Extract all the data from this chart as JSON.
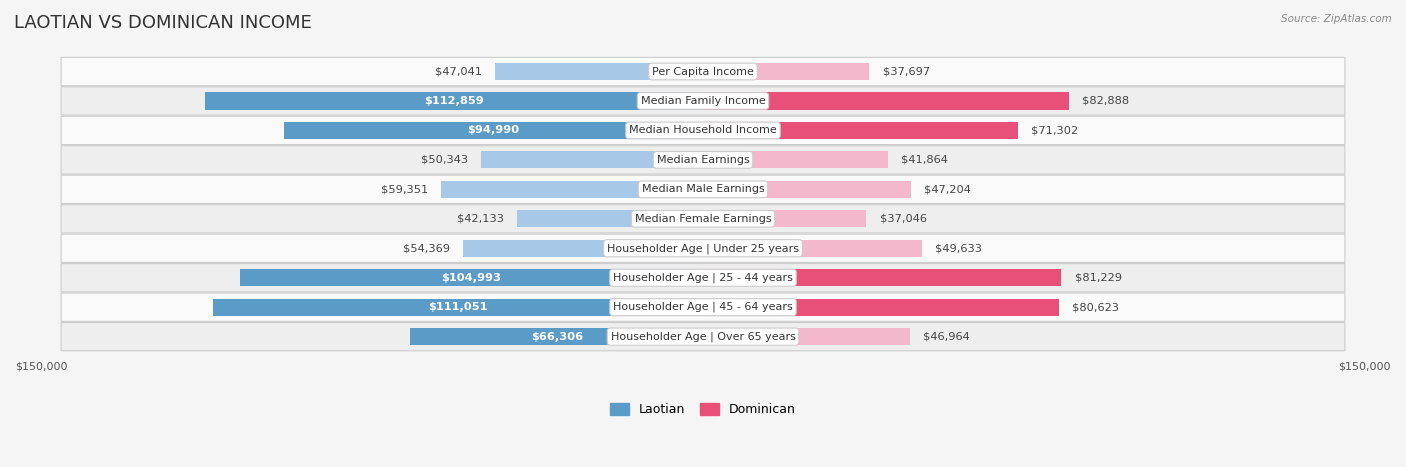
{
  "title": "LAOTIAN VS DOMINICAN INCOME",
  "source": "Source: ZipAtlas.com",
  "categories": [
    "Per Capita Income",
    "Median Family Income",
    "Median Household Income",
    "Median Earnings",
    "Median Male Earnings",
    "Median Female Earnings",
    "Householder Age | Under 25 years",
    "Householder Age | 25 - 44 years",
    "Householder Age | 45 - 64 years",
    "Householder Age | Over 65 years"
  ],
  "laotian_values": [
    47041,
    112859,
    94990,
    50343,
    59351,
    42133,
    54369,
    104993,
    111051,
    66306
  ],
  "dominican_values": [
    37697,
    82888,
    71302,
    41864,
    47204,
    37046,
    49633,
    81229,
    80623,
    46964
  ],
  "laotian_labels": [
    "$47,041",
    "$112,859",
    "$94,990",
    "$50,343",
    "$59,351",
    "$42,133",
    "$54,369",
    "$104,993",
    "$111,051",
    "$66,306"
  ],
  "dominican_labels": [
    "$37,697",
    "$82,888",
    "$71,302",
    "$41,864",
    "$47,204",
    "$37,046",
    "$49,633",
    "$81,229",
    "$80,623",
    "$46,964"
  ],
  "laotian_color_light": "#a8c8e8",
  "laotian_color_dark": "#5b9bc8",
  "dominican_color_light": "#f4b8cc",
  "dominican_color_dark": "#e8507a",
  "white_text_threshold": 65000,
  "max_value": 150000,
  "bar_height": 0.58,
  "background_color": "#f5f5f5",
  "row_bg_odd": "#eeeeee",
  "row_bg_even": "#fafafa",
  "title_fontsize": 13,
  "label_fontsize": 8.2,
  "cat_fontsize": 8.0,
  "axis_label_fontsize": 8,
  "legend_fontsize": 9
}
